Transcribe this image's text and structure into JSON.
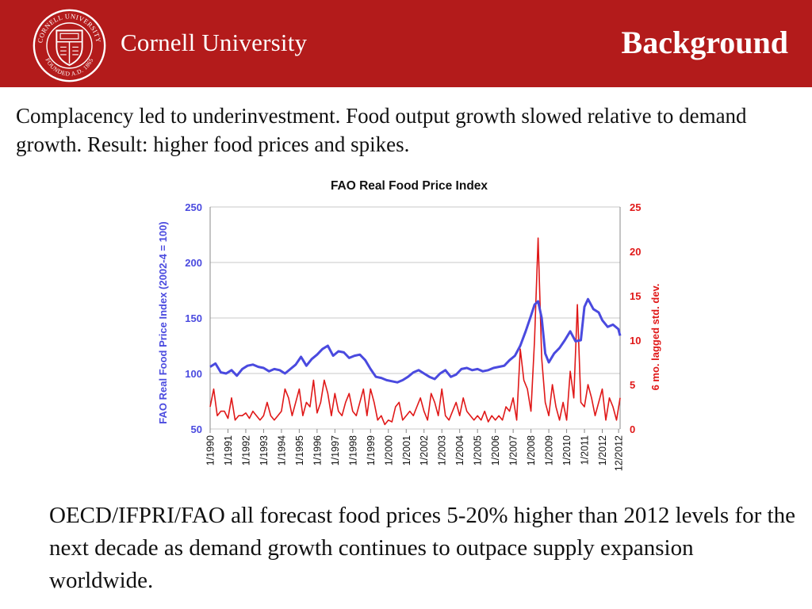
{
  "header": {
    "university": "Cornell University",
    "slide_title": "Background",
    "brand_color": "#b31b1b",
    "seal_icon": "cornell-seal-icon",
    "seal_text_top": "CORNELL UNIVERSITY",
    "seal_text_bottom": "FOUNDED A.D. 1865"
  },
  "intro_text": "Complacency led to underinvestment.  Food output growth slowed relative to demand growth. Result: higher food prices and spikes.",
  "footer_text": "OECD/IFPRI/FAO all forecast food prices 5-20% higher than 2012 levels for the next decade as demand growth continues to outpace supply expansion worldwide.",
  "chart_data": {
    "type": "line",
    "title": "FAO Real Food Price Index",
    "ylabel": "FAO  Real Food Price Index (2002-4 = 100)",
    "y2label": "6 mo. lagged std. dev.",
    "ylim": [
      50,
      250
    ],
    "y2lim": [
      0,
      25
    ],
    "yticks": [
      "250",
      "200",
      "150",
      "100",
      "50"
    ],
    "y2ticks": [
      "25",
      "20",
      "15",
      "10",
      "5",
      "0"
    ],
    "grid": true,
    "legend": "none",
    "categories": [
      "1/1990",
      "1/1991",
      "1/1992",
      "1/1993",
      "1/1994",
      "1/1995",
      "1/1996",
      "1/1997",
      "1/1998",
      "1/1999",
      "1/2000",
      "1/2001",
      "1/2002",
      "1/2003",
      "1/2004",
      "1/2005",
      "1/2006",
      "1/2007",
      "1/2008",
      "1/2009",
      "1/2010",
      "1/2011",
      "1/2012",
      "12/2012"
    ],
    "series": [
      {
        "axis": "left",
        "color": "#4a4adf",
        "x": [
          1990.0,
          1990.3,
          1990.6,
          1990.9,
          1991.2,
          1991.5,
          1991.8,
          1992.1,
          1992.4,
          1992.7,
          1993.0,
          1993.3,
          1993.6,
          1993.9,
          1994.2,
          1994.5,
          1994.8,
          1995.1,
          1995.4,
          1995.7,
          1996.0,
          1996.3,
          1996.6,
          1996.9,
          1997.2,
          1997.5,
          1997.8,
          1998.1,
          1998.4,
          1998.7,
          1999.0,
          1999.3,
          1999.6,
          1999.9,
          2000.2,
          2000.5,
          2000.8,
          2001.1,
          2001.4,
          2001.7,
          2002.0,
          2002.3,
          2002.6,
          2002.9,
          2003.2,
          2003.5,
          2003.8,
          2004.1,
          2004.4,
          2004.7,
          2005.0,
          2005.3,
          2005.6,
          2005.9,
          2006.2,
          2006.5,
          2006.8,
          2007.1,
          2007.4,
          2007.7,
          2008.0,
          2008.2,
          2008.4,
          2008.6,
          2008.8,
          2009.0,
          2009.3,
          2009.6,
          2009.9,
          2010.2,
          2010.5,
          2010.8,
          2011.0,
          2011.2,
          2011.5,
          2011.8,
          2012.0,
          2012.3,
          2012.6,
          2012.9,
          2013.0
        ],
        "values": [
          106,
          109,
          101,
          100,
          103,
          98,
          104,
          107,
          108,
          106,
          105,
          102,
          104,
          103,
          100,
          104,
          108,
          115,
          107,
          113,
          117,
          122,
          125,
          116,
          120,
          119,
          114,
          116,
          117,
          112,
          104,
          97,
          96,
          94,
          93,
          92,
          94,
          97,
          101,
          103,
          100,
          97,
          95,
          100,
          103,
          97,
          99,
          104,
          105,
          103,
          104,
          102,
          103,
          105,
          106,
          107,
          112,
          116,
          125,
          138,
          152,
          162,
          165,
          150,
          118,
          110,
          118,
          123,
          130,
          138,
          129,
          130,
          160,
          167,
          158,
          155,
          148,
          142,
          144,
          140,
          134
        ]
      },
      {
        "axis": "right",
        "color": "#e01818",
        "x": [
          1990.0,
          1990.2,
          1990.4,
          1990.6,
          1990.8,
          1991.0,
          1991.2,
          1991.4,
          1991.6,
          1991.8,
          1992.0,
          1992.2,
          1992.4,
          1992.6,
          1992.8,
          1993.0,
          1993.2,
          1993.4,
          1993.6,
          1993.8,
          1994.0,
          1994.2,
          1994.4,
          1994.6,
          1994.8,
          1995.0,
          1995.2,
          1995.4,
          1995.6,
          1995.8,
          1996.0,
          1996.2,
          1996.4,
          1996.6,
          1996.8,
          1997.0,
          1997.2,
          1997.4,
          1997.6,
          1997.8,
          1998.0,
          1998.2,
          1998.4,
          1998.6,
          1998.8,
          1999.0,
          1999.2,
          1999.4,
          1999.6,
          1999.8,
          2000.0,
          2000.2,
          2000.4,
          2000.6,
          2000.8,
          2001.0,
          2001.2,
          2001.4,
          2001.6,
          2001.8,
          2002.0,
          2002.2,
          2002.4,
          2002.6,
          2002.8,
          2003.0,
          2003.2,
          2003.4,
          2003.6,
          2003.8,
          2004.0,
          2004.2,
          2004.4,
          2004.6,
          2004.8,
          2005.0,
          2005.2,
          2005.4,
          2005.6,
          2005.8,
          2006.0,
          2006.2,
          2006.4,
          2006.6,
          2006.8,
          2007.0,
          2007.2,
          2007.4,
          2007.6,
          2007.8,
          2008.0,
          2008.2,
          2008.4,
          2008.6,
          2008.8,
          2009.0,
          2009.2,
          2009.4,
          2009.6,
          2009.8,
          2010.0,
          2010.2,
          2010.4,
          2010.6,
          2010.8,
          2011.0,
          2011.2,
          2011.4,
          2011.6,
          2011.8,
          2012.0,
          2012.2,
          2012.4,
          2012.6,
          2012.8,
          2013.0
        ],
        "values": [
          2.5,
          4.5,
          1.5,
          2.0,
          2.0,
          1.2,
          3.5,
          1.0,
          1.5,
          1.5,
          1.8,
          1.2,
          2.0,
          1.5,
          1.0,
          1.5,
          3.0,
          1.5,
          1.0,
          1.5,
          2.0,
          4.5,
          3.5,
          1.5,
          3.0,
          4.5,
          1.5,
          3.0,
          2.5,
          5.5,
          1.8,
          3.0,
          5.5,
          4.0,
          1.5,
          4.0,
          2.0,
          1.5,
          3.0,
          4.0,
          2.0,
          1.5,
          3.0,
          4.5,
          1.5,
          4.5,
          3.0,
          1.0,
          1.5,
          0.5,
          1.0,
          0.8,
          2.5,
          3.0,
          1.0,
          1.5,
          2.0,
          1.5,
          2.5,
          3.5,
          2.0,
          1.0,
          4.0,
          3.0,
          1.5,
          4.5,
          1.5,
          1.0,
          2.0,
          3.0,
          1.5,
          3.5,
          2.0,
          1.5,
          1.0,
          1.5,
          1.0,
          2.0,
          0.8,
          1.5,
          1.0,
          1.5,
          1.0,
          2.5,
          2.0,
          3.5,
          1.0,
          9.0,
          5.5,
          4.5,
          2.0,
          10.0,
          21.5,
          8.0,
          3.0,
          1.5,
          5.0,
          2.5,
          1.0,
          3.0,
          1.0,
          6.5,
          3.5,
          14.0,
          3.0,
          2.5,
          5.0,
          3.5,
          1.5,
          3.0,
          4.5,
          1.0,
          3.5,
          2.5,
          1.0,
          3.5
        ]
      }
    ]
  }
}
